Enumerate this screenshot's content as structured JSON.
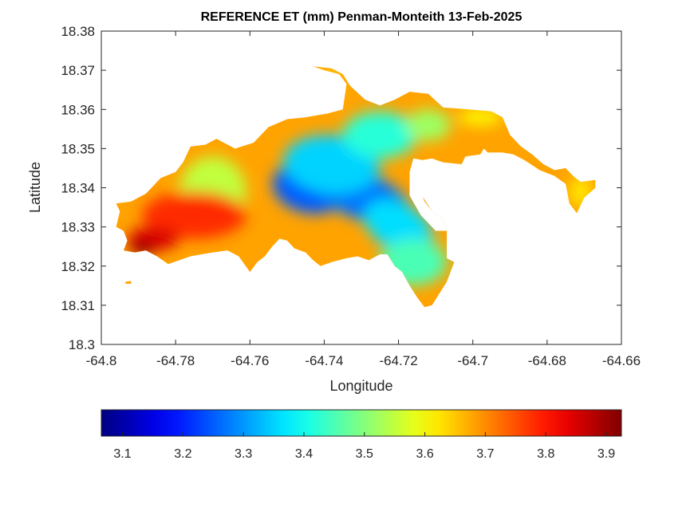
{
  "chart_data": {
    "type": "heatmap",
    "title": "REFERENCE ET (mm) Penman-Monteith 13-Feb-2025",
    "xlabel": "Longitude",
    "ylabel": "Latitude",
    "xlim": [
      -64.8,
      -64.66
    ],
    "ylim": [
      18.3,
      18.38
    ],
    "xticks": [
      -64.8,
      -64.78,
      -64.76,
      -64.74,
      -64.72,
      -64.7,
      -64.68,
      -64.66
    ],
    "xtick_labels": [
      "-64.8",
      "-64.78",
      "-64.76",
      "-64.74",
      "-64.72",
      "-64.7",
      "-64.68",
      "-64.66"
    ],
    "yticks": [
      18.3,
      18.31,
      18.32,
      18.33,
      18.34,
      18.35,
      18.36,
      18.37,
      18.38
    ],
    "ytick_labels": [
      "18.3",
      "18.31",
      "18.32",
      "18.33",
      "18.34",
      "18.35",
      "18.36",
      "18.37",
      "18.38"
    ],
    "grid": false,
    "colormap": "jet",
    "colorbar": {
      "orientation": "horizontal",
      "placement": "below",
      "clim": [
        3.065,
        3.925
      ],
      "ticks": [
        3.1,
        3.2,
        3.3,
        3.4,
        3.5,
        3.6,
        3.7,
        3.8,
        3.9
      ],
      "tick_labels": [
        "3.1",
        "3.2",
        "3.3",
        "3.4",
        "3.5",
        "3.6",
        "3.7",
        "3.8",
        "3.9"
      ]
    },
    "land_outline": [
      [
        -64.792,
        18.3365
      ],
      [
        -64.788,
        18.3385
      ],
      [
        -64.784,
        18.3425
      ],
      [
        -64.78,
        18.344
      ],
      [
        -64.778,
        18.3465
      ],
      [
        -64.776,
        18.3505
      ],
      [
        -64.772,
        18.351
      ],
      [
        -64.769,
        18.3525
      ],
      [
        -64.764,
        18.35
      ],
      [
        -64.759,
        18.3515
      ],
      [
        -64.755,
        18.3555
      ],
      [
        -64.75,
        18.3575
      ],
      [
        -64.745,
        18.358
      ],
      [
        -64.739,
        18.359
      ],
      [
        -64.735,
        18.36
      ],
      [
        -64.734,
        18.3665
      ],
      [
        -64.736,
        18.369
      ],
      [
        -64.74,
        18.37
      ],
      [
        -64.743,
        18.371
      ],
      [
        -64.738,
        18.3705
      ],
      [
        -64.735,
        18.369
      ],
      [
        -64.733,
        18.366
      ],
      [
        -64.729,
        18.3625
      ],
      [
        -64.725,
        18.361
      ],
      [
        -64.721,
        18.3625
      ],
      [
        -64.717,
        18.3645
      ],
      [
        -64.712,
        18.364
      ],
      [
        -64.708,
        18.3605
      ],
      [
        -64.701,
        18.36
      ],
      [
        -64.695,
        18.3595
      ],
      [
        -64.692,
        18.358
      ],
      [
        -64.69,
        18.3535
      ],
      [
        -64.687,
        18.3505
      ],
      [
        -64.684,
        18.3485
      ],
      [
        -64.681,
        18.346
      ],
      [
        -64.678,
        18.3445
      ],
      [
        -64.675,
        18.345
      ],
      [
        -64.673,
        18.343
      ],
      [
        -64.671,
        18.3415
      ],
      [
        -64.667,
        18.342
      ],
      [
        -64.667,
        18.34
      ],
      [
        -64.67,
        18.3375
      ],
      [
        -64.672,
        18.3335
      ],
      [
        -64.674,
        18.336
      ],
      [
        -64.675,
        18.341
      ],
      [
        -64.678,
        18.343
      ],
      [
        -64.682,
        18.3445
      ],
      [
        -64.686,
        18.347
      ],
      [
        -64.689,
        18.3485
      ],
      [
        -64.692,
        18.349
      ],
      [
        -64.696,
        18.349
      ],
      [
        -64.697,
        18.35
      ],
      [
        -64.698,
        18.3485
      ],
      [
        -64.702,
        18.348
      ],
      [
        -64.703,
        18.346
      ],
      [
        -64.708,
        18.3465
      ],
      [
        -64.711,
        18.3475
      ],
      [
        -64.714,
        18.347
      ],
      [
        -64.716,
        18.344
      ],
      [
        -64.715,
        18.34
      ],
      [
        -64.713,
        18.337
      ],
      [
        -64.711,
        18.334
      ],
      [
        -64.708,
        18.332
      ],
      [
        -64.707,
        18.329
      ],
      [
        -64.707,
        18.322
      ],
      [
        -64.705,
        18.321
      ],
      [
        -64.707,
        18.316
      ],
      [
        -64.709,
        18.313
      ],
      [
        -64.711,
        18.31
      ],
      [
        -64.713,
        18.3095
      ],
      [
        -64.715,
        18.312
      ],
      [
        -64.717,
        18.315
      ],
      [
        -64.719,
        18.3185
      ],
      [
        -64.721,
        18.32
      ],
      [
        -64.723,
        18.323
      ],
      [
        -64.725,
        18.323
      ],
      [
        -64.728,
        18.3215
      ],
      [
        -64.731,
        18.3225
      ],
      [
        -64.734,
        18.322
      ],
      [
        -64.738,
        18.321
      ],
      [
        -64.741,
        18.32
      ],
      [
        -64.743,
        18.3215
      ],
      [
        -64.745,
        18.3235
      ],
      [
        -64.748,
        18.3245
      ],
      [
        -64.75,
        18.3265
      ],
      [
        -64.752,
        18.327
      ],
      [
        -64.754,
        18.325
      ],
      [
        -64.756,
        18.3225
      ],
      [
        -64.758,
        18.321
      ],
      [
        -64.76,
        18.3185
      ],
      [
        -64.763,
        18.3225
      ],
      [
        -64.766,
        18.324
      ],
      [
        -64.77,
        18.3235
      ],
      [
        -64.773,
        18.323
      ],
      [
        -64.776,
        18.3225
      ],
      [
        -64.779,
        18.3215
      ],
      [
        -64.782,
        18.3205
      ],
      [
        -64.785,
        18.3225
      ],
      [
        -64.788,
        18.324
      ],
      [
        -64.791,
        18.3235
      ],
      [
        -64.794,
        18.324
      ],
      [
        -64.793,
        18.3265
      ],
      [
        -64.794,
        18.329
      ],
      [
        -64.796,
        18.33
      ],
      [
        -64.795,
        18.334
      ],
      [
        -64.796,
        18.336
      ]
    ],
    "inlet_outline": [
      [
        -64.716,
        18.3475
      ],
      [
        -64.712,
        18.3468
      ],
      [
        -64.711,
        18.344
      ],
      [
        -64.713,
        18.3415
      ],
      [
        -64.714,
        18.339
      ],
      [
        -64.713,
        18.3365
      ],
      [
        -64.711,
        18.334
      ],
      [
        -64.708,
        18.332
      ],
      [
        -64.707,
        18.329
      ],
      [
        -64.71,
        18.329
      ],
      [
        -64.714,
        18.333
      ],
      [
        -64.717,
        18.338
      ],
      [
        -64.717,
        18.344
      ]
    ],
    "islet_outline": [
      [
        -64.7935,
        18.316
      ],
      [
        -64.792,
        18.3162
      ],
      [
        -64.792,
        18.3155
      ],
      [
        -64.7935,
        18.3155
      ]
    ],
    "value_field": [
      {
        "lon": -64.735,
        "lat": 18.3405,
        "value": 3.07,
        "rx": 0.01,
        "ry": 0.0042,
        "rotate_deg": 18
      },
      {
        "lon": -64.727,
        "lat": 18.336,
        "value": 3.12,
        "rx": 0.007,
        "ry": 0.003,
        "rotate_deg": 20
      },
      {
        "lon": -64.74,
        "lat": 18.3425,
        "value": 3.16,
        "rx": 0.008,
        "ry": 0.004,
        "rotate_deg": 10
      },
      {
        "lon": -64.744,
        "lat": 18.34,
        "value": 3.25,
        "rx": 0.01,
        "ry": 0.0065,
        "rotate_deg": 12
      },
      {
        "lon": -64.73,
        "lat": 18.338,
        "value": 3.27,
        "rx": 0.014,
        "ry": 0.006,
        "rotate_deg": 22
      },
      {
        "lon": -64.72,
        "lat": 18.33,
        "value": 3.36,
        "rx": 0.01,
        "ry": 0.006,
        "rotate_deg": 30
      },
      {
        "lon": -64.738,
        "lat": 18.346,
        "value": 3.35,
        "rx": 0.013,
        "ry": 0.0075,
        "rotate_deg": 5
      },
      {
        "lon": -64.725,
        "lat": 18.3535,
        "value": 3.42,
        "rx": 0.01,
        "ry": 0.006,
        "rotate_deg": 0
      },
      {
        "lon": -64.716,
        "lat": 18.321,
        "value": 3.45,
        "rx": 0.009,
        "ry": 0.006,
        "rotate_deg": 0
      },
      {
        "lon": -64.712,
        "lat": 18.356,
        "value": 3.52,
        "rx": 0.006,
        "ry": 0.004,
        "rotate_deg": 0
      },
      {
        "lon": -64.77,
        "lat": 18.339,
        "value": 3.55,
        "rx": 0.009,
        "ry": 0.009,
        "rotate_deg": 0
      },
      {
        "lon": -64.739,
        "lat": 18.3655,
        "value": 3.62,
        "rx": 0.003,
        "ry": 0.004,
        "rotate_deg": 0
      },
      {
        "lon": -64.698,
        "lat": 18.358,
        "value": 3.6,
        "rx": 0.006,
        "ry": 0.002,
        "rotate_deg": 0
      },
      {
        "lon": -64.671,
        "lat": 18.339,
        "value": 3.62,
        "rx": 0.003,
        "ry": 0.004,
        "rotate_deg": 0
      },
      {
        "lon": -64.775,
        "lat": 18.333,
        "value": 3.78,
        "rx": 0.014,
        "ry": 0.006,
        "rotate_deg": 0
      },
      {
        "lon": -64.786,
        "lat": 18.327,
        "value": 3.85,
        "rx": 0.007,
        "ry": 0.003,
        "rotate_deg": 0
      },
      {
        "lon": -64.789,
        "lat": 18.3245,
        "value": 3.91,
        "rx": 0.0035,
        "ry": 0.0018,
        "rotate_deg": 0
      }
    ]
  }
}
